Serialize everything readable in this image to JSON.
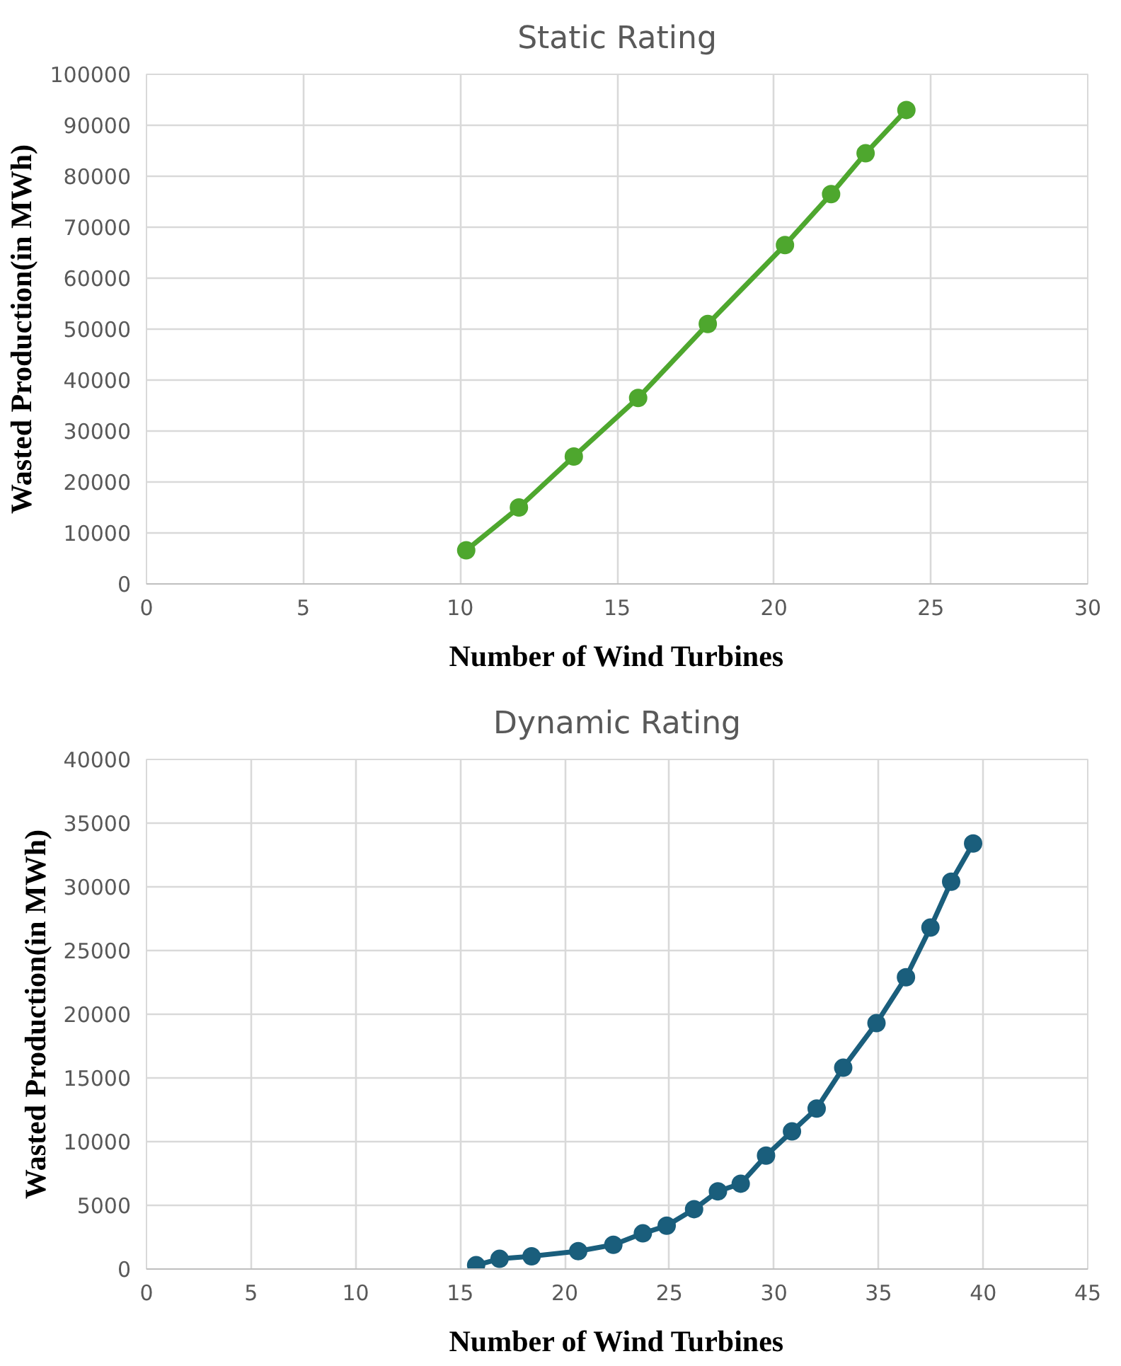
{
  "chart_data": [
    {
      "type": "line",
      "title": "Static Rating",
      "xlabel": "Number of Wind Turbines",
      "ylabel": "Wasted Production(in MWh)",
      "marker": "circle",
      "grid": true,
      "xlim": [
        0,
        30
      ],
      "xticks": [
        0,
        5,
        10,
        15,
        20,
        25,
        30
      ],
      "ylim": [
        0,
        100000
      ],
      "yticks": [
        0,
        10000,
        20000,
        30000,
        40000,
        50000,
        60000,
        70000,
        80000,
        90000,
        100000
      ],
      "series": [
        {
          "color": "#4ea72e",
          "x": [
            10.19,
            11.87,
            13.62,
            15.67,
            17.89,
            20.35,
            21.82,
            22.92,
            24.22
          ],
          "values": [
            6600,
            15000,
            25000,
            36500,
            51000,
            66500,
            76500,
            84500,
            93000
          ]
        }
      ]
    },
    {
      "type": "line",
      "title": "Dynamic Rating",
      "xlabel": "Number of Wind Turbines",
      "ylabel": "Wasted Production(in MWh)",
      "marker": "circle",
      "grid": true,
      "xlim": [
        0,
        45
      ],
      "xticks": [
        0,
        5,
        10,
        15,
        20,
        25,
        30,
        35,
        40,
        45
      ],
      "ylim": [
        0,
        40000
      ],
      "yticks": [
        0,
        5000,
        10000,
        15000,
        20000,
        25000,
        30000,
        35000,
        40000
      ],
      "series": [
        {
          "color": "#1a5e7c",
          "x": [
            15.76,
            16.88,
            18.41,
            20.64,
            22.32,
            23.73,
            24.87,
            26.18,
            27.32,
            28.41,
            29.62,
            30.86,
            32.04,
            33.31,
            34.9,
            36.31,
            37.48,
            38.47,
            39.52
          ],
          "values": [
            300,
            800,
            1000,
            1400,
            1900,
            2800,
            3400,
            4700,
            6100,
            6700,
            8900,
            10800,
            12600,
            15800,
            19300,
            22900,
            26800,
            30400,
            33400
          ]
        }
      ]
    }
  ]
}
